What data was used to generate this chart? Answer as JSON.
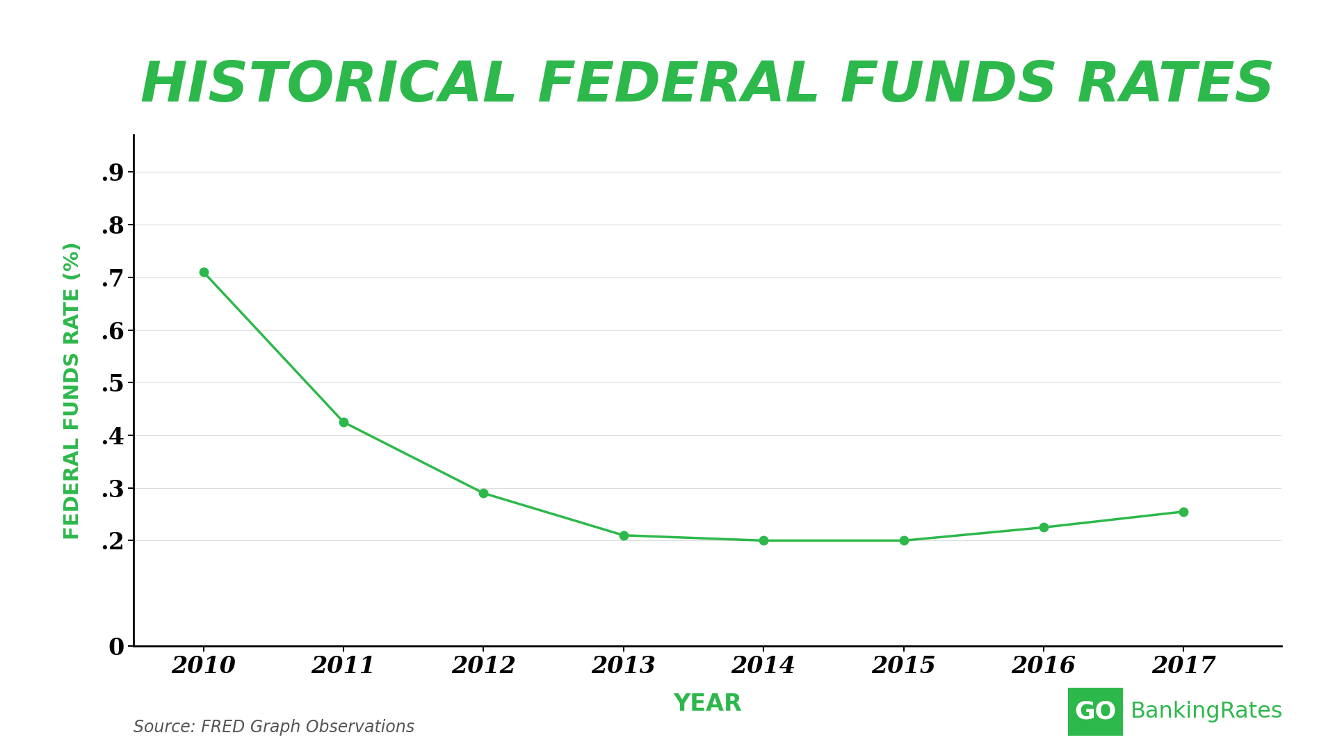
{
  "title": "HISTORICAL FEDERAL FUNDS RATES",
  "years": [
    2010,
    2011,
    2012,
    2013,
    2014,
    2015,
    2016,
    2017
  ],
  "values": [
    0.71,
    0.425,
    0.29,
    0.21,
    0.2,
    0.2,
    0.225,
    0.255
  ],
  "line_color": "#2db84b",
  "marker_color": "#2db84b",
  "title_color": "#2db84b",
  "ylabel": "FEDERAL FUNDS RATE (%)",
  "ylabel_color": "#2db84b",
  "xlabel": "YEAR",
  "xlabel_color": "#2db84b",
  "ytick_labels": [
    "0",
    ".2",
    ".3",
    ".4",
    ".5",
    ".6",
    ".7",
    ".8",
    ".9"
  ],
  "ytick_values": [
    0,
    0.2,
    0.3,
    0.4,
    0.5,
    0.6,
    0.7,
    0.8,
    0.9
  ],
  "ylim": [
    0,
    0.97
  ],
  "xlim": [
    2009.5,
    2017.7
  ],
  "source_text": "Source: FRED Graph Observations",
  "background_color": "#ffffff",
  "logo_bg_color": "#2db84b"
}
